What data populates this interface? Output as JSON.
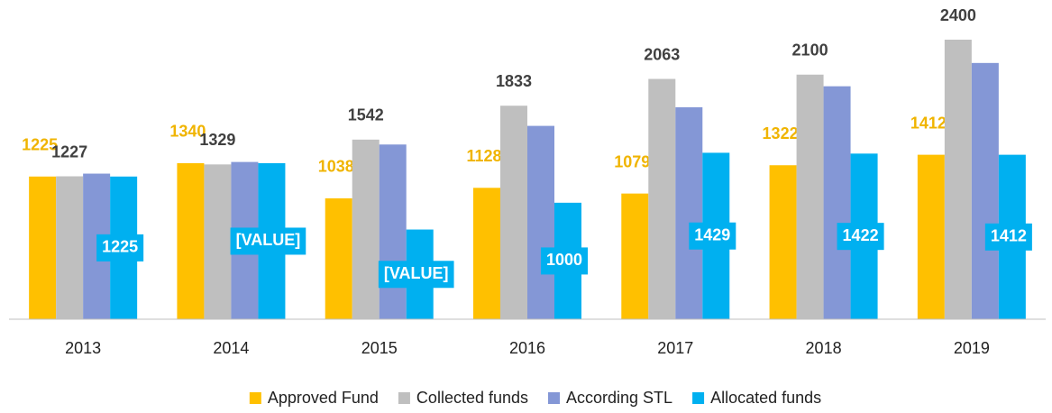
{
  "chart_data": {
    "type": "bar",
    "categories": [
      "2013",
      "2014",
      "2015",
      "2016",
      "2017",
      "2018",
      "2019"
    ],
    "series": [
      {
        "name": "Approved Fund",
        "color": "#ffc000",
        "values": [
          1225,
          1340,
          1038,
          1128,
          1079,
          1322,
          1412
        ]
      },
      {
        "name": "Collected funds",
        "color": "#bfbfbf",
        "values": [
          1227,
          1329,
          1542,
          1833,
          2063,
          2100,
          2400
        ]
      },
      {
        "name": "According STL",
        "color": "#8497d6",
        "values": [
          1250,
          1350,
          1500,
          1660,
          1820,
          2000,
          2200
        ]
      },
      {
        "name": "Allocated funds",
        "color": "#00b0f0",
        "values": [
          1225,
          1340,
          770,
          1000,
          1429,
          1422,
          1412
        ],
        "value_labels": [
          "1225",
          "[VALUE]",
          "[VALUE]",
          "1000",
          "1429",
          "1422",
          "1412"
        ]
      }
    ]
  }
}
